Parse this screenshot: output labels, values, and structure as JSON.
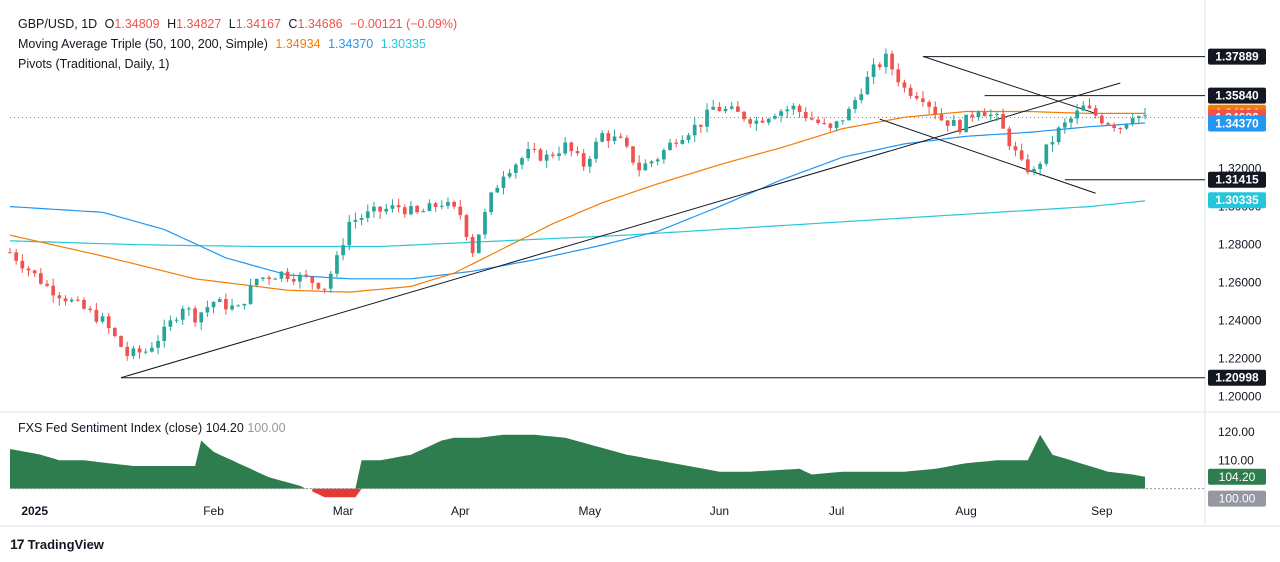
{
  "header": {
    "symbol": "GBP/USD, 1D",
    "o_label": "O",
    "o": "1.34809",
    "h_label": "H",
    "h": "1.34827",
    "l_label": "L",
    "l": "1.34167",
    "c_label": "C",
    "c": "1.34686",
    "change": "−0.00121 (−0.09%)",
    "ma_label": "Moving Average Triple (50, 100, 200, Simple)",
    "ma50": "1.34934",
    "ma100": "1.34370",
    "ma200": "1.30335",
    "pivots_label": "Pivots (Traditional, Daily, 1)"
  },
  "indicator": {
    "label": "FXS Fed Sentiment Index (close)",
    "value": "104.20",
    "base": "100.00"
  },
  "brand": {
    "name": "TradingView"
  },
  "colors": {
    "up": "#26a69a",
    "down": "#ef5350",
    "ma50": "#f57c00",
    "ma100": "#2196f3",
    "ma200": "#26c6da",
    "sent_fill": "#2e7d4f",
    "sent_neg": "#e53935",
    "price_line": "#ef5350"
  },
  "chart_data": {
    "type": "candlestick",
    "symbol": "GBP/USD",
    "interval": "1D",
    "x_ticks": [
      "2025",
      "Feb",
      "Mar",
      "Apr",
      "May",
      "Jun",
      "Jul",
      "Aug",
      "Sep"
    ],
    "y_ticks": [
      "1.20000",
      "1.22000",
      "1.24000",
      "1.26000",
      "1.28000",
      "1.30000",
      "1.32000"
    ],
    "ylim": [
      1.193,
      1.385
    ],
    "price_labels": [
      {
        "text": "1.37889",
        "value": 1.37889,
        "color": "#131722"
      },
      {
        "text": "1.35840",
        "value": 1.3584,
        "color": "#131722"
      },
      {
        "text": "1.34934",
        "value": 1.34934,
        "color": "#f57c00"
      },
      {
        "text": "1.34686",
        "value": 1.34686,
        "color": "#ef5350"
      },
      {
        "text": "1.34370",
        "value": 1.3437,
        "color": "#2196f3"
      },
      {
        "text": "1.31415",
        "value": 1.31415,
        "color": "#131722"
      },
      {
        "text": "1.30335",
        "value": 1.30335,
        "color": "#26c6da"
      },
      {
        "text": "1.20998",
        "value": 1.20998,
        "color": "#131722"
      }
    ],
    "close_path": [
      [
        0,
        1.276
      ],
      [
        6,
        1.258
      ],
      [
        10,
        1.25
      ],
      [
        15,
        1.24
      ],
      [
        19,
        1.222
      ],
      [
        22,
        1.224
      ],
      [
        25,
        1.234
      ],
      [
        28,
        1.248
      ],
      [
        30,
        1.242
      ],
      [
        33,
        1.25
      ],
      [
        37,
        1.246
      ],
      [
        40,
        1.262
      ],
      [
        44,
        1.265
      ],
      [
        48,
        1.262
      ],
      [
        51,
        1.258
      ],
      [
        53,
        1.272
      ],
      [
        55,
        1.292
      ],
      [
        59,
        1.297
      ],
      [
        63,
        1.3
      ],
      [
        66,
        1.296
      ],
      [
        70,
        1.302
      ],
      [
        73,
        1.296
      ],
      [
        75,
        1.277
      ],
      [
        78,
        1.305
      ],
      [
        80,
        1.318
      ],
      [
        84,
        1.328
      ],
      [
        87,
        1.326
      ],
      [
        90,
        1.332
      ],
      [
        93,
        1.322
      ],
      [
        96,
        1.338
      ],
      [
        99,
        1.334
      ],
      [
        102,
        1.32
      ],
      [
        105,
        1.326
      ],
      [
        108,
        1.336
      ],
      [
        112,
        1.344
      ],
      [
        114,
        1.352
      ],
      [
        117,
        1.35
      ],
      [
        121,
        1.345
      ],
      [
        124,
        1.35
      ],
      [
        127,
        1.352
      ],
      [
        130,
        1.346
      ],
      [
        133,
        1.34
      ],
      [
        136,
        1.35
      ],
      [
        138,
        1.362
      ],
      [
        140,
        1.372
      ],
      [
        142,
        1.378
      ],
      [
        145,
        1.362
      ],
      [
        148,
        1.358
      ],
      [
        151,
        1.346
      ],
      [
        154,
        1.342
      ],
      [
        157,
        1.352
      ],
      [
        160,
        1.346
      ],
      [
        162,
        1.334
      ],
      [
        164,
        1.322
      ],
      [
        166,
        1.318
      ],
      [
        168,
        1.33
      ],
      [
        170,
        1.34
      ],
      [
        172,
        1.346
      ],
      [
        174,
        1.352
      ],
      [
        177,
        1.346
      ],
      [
        180,
        1.342
      ],
      [
        182,
        1.349
      ],
      [
        184,
        1.346
      ]
    ],
    "ma50": {
      "name": "MA 50",
      "last": 1.34934,
      "path": [
        [
          0,
          1.285
        ],
        [
          15,
          1.274
        ],
        [
          30,
          1.262
        ],
        [
          45,
          1.256
        ],
        [
          55,
          1.255
        ],
        [
          65,
          1.258
        ],
        [
          72,
          1.265
        ],
        [
          80,
          1.278
        ],
        [
          88,
          1.291
        ],
        [
          96,
          1.302
        ],
        [
          105,
          1.312
        ],
        [
          115,
          1.322
        ],
        [
          125,
          1.331
        ],
        [
          135,
          1.341
        ],
        [
          145,
          1.347
        ],
        [
          155,
          1.35
        ],
        [
          165,
          1.35
        ],
        [
          175,
          1.349
        ],
        [
          184,
          1.349
        ]
      ]
    },
    "ma100": {
      "name": "MA 100",
      "last": 1.3437,
      "path": [
        [
          0,
          1.3
        ],
        [
          15,
          1.297
        ],
        [
          25,
          1.288
        ],
        [
          35,
          1.273
        ],
        [
          45,
          1.264
        ],
        [
          55,
          1.262
        ],
        [
          65,
          1.262
        ],
        [
          75,
          1.266
        ],
        [
          85,
          1.272
        ],
        [
          95,
          1.279
        ],
        [
          105,
          1.287
        ],
        [
          115,
          1.3
        ],
        [
          125,
          1.314
        ],
        [
          135,
          1.326
        ],
        [
          145,
          1.333
        ],
        [
          155,
          1.337
        ],
        [
          165,
          1.339
        ],
        [
          175,
          1.342
        ],
        [
          184,
          1.344
        ]
      ]
    },
    "ma200": {
      "name": "MA 200",
      "last": 1.30335,
      "path": [
        [
          0,
          1.282
        ],
        [
          20,
          1.28
        ],
        [
          40,
          1.279
        ],
        [
          60,
          1.279
        ],
        [
          80,
          1.282
        ],
        [
          100,
          1.285
        ],
        [
          120,
          1.289
        ],
        [
          140,
          1.293
        ],
        [
          160,
          1.297
        ],
        [
          175,
          1.3
        ],
        [
          184,
          1.303
        ]
      ]
    },
    "trendlines": [
      {
        "name": "support-trendline",
        "from": [
          18,
          1.21
        ],
        "to": [
          180,
          1.365
        ]
      },
      {
        "name": "channel-upper",
        "from": [
          148,
          1.379
        ],
        "to": [
          176,
          1.349
        ]
      },
      {
        "name": "channel-lower",
        "from": [
          141,
          1.346
        ],
        "to": [
          176,
          1.307
        ]
      }
    ],
    "pivot_lines": [
      {
        "value": 1.37889,
        "from": 148
      },
      {
        "value": 1.3584,
        "from": 158
      },
      {
        "value": 1.31415,
        "from": 171
      },
      {
        "value": 1.20998,
        "from": 18
      }
    ],
    "sentiment": {
      "name": "FXS Fed Sentiment Index (close)",
      "y_ticks": [
        "120.00",
        "110.00"
      ],
      "ylim": [
        96,
        126
      ],
      "last": 104.2,
      "base": 100,
      "path": [
        [
          0,
          114
        ],
        [
          5,
          112
        ],
        [
          8,
          110
        ],
        [
          12,
          110
        ],
        [
          16,
          109
        ],
        [
          20,
          108
        ],
        [
          25,
          108
        ],
        [
          30,
          108
        ],
        [
          31,
          117
        ],
        [
          33,
          113
        ],
        [
          37,
          109
        ],
        [
          42,
          104
        ],
        [
          47,
          101
        ],
        [
          50,
          98
        ],
        [
          51,
          97
        ],
        [
          56,
          97
        ],
        [
          57,
          110
        ],
        [
          60,
          110
        ],
        [
          65,
          112
        ],
        [
          70,
          117
        ],
        [
          72,
          118
        ],
        [
          76,
          118
        ],
        [
          80,
          119
        ],
        [
          85,
          119
        ],
        [
          90,
          118
        ],
        [
          95,
          115
        ],
        [
          100,
          112
        ],
        [
          105,
          110
        ],
        [
          110,
          108
        ],
        [
          115,
          106
        ],
        [
          120,
          106
        ],
        [
          128,
          107
        ],
        [
          130,
          105
        ],
        [
          135,
          106
        ],
        [
          140,
          106
        ],
        [
          145,
          106
        ],
        [
          150,
          107
        ],
        [
          155,
          109
        ],
        [
          160,
          110
        ],
        [
          165,
          110
        ],
        [
          167,
          119
        ],
        [
          169,
          112
        ],
        [
          172,
          110
        ],
        [
          175,
          108
        ],
        [
          178,
          106
        ],
        [
          182,
          105
        ],
        [
          184,
          104.2
        ]
      ]
    }
  }
}
